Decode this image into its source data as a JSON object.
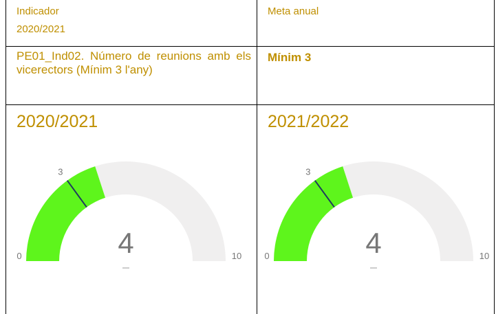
{
  "header": {
    "indicator_label": "Indicador",
    "indicator_year": "2020/2021",
    "target_label": "Meta anual"
  },
  "indicator": {
    "name": "PE01_Ind02. Número de reunions amb els vicerectors (Mínim 3 l'any)",
    "target": "Mínim 3"
  },
  "gauges": [
    {
      "title": "2020/2021",
      "value": 4,
      "min": 0,
      "max": 10,
      "target": 3
    },
    {
      "title": "2021/2022",
      "value": 4,
      "min": 0,
      "max": 10,
      "target": 3
    }
  ]
}
